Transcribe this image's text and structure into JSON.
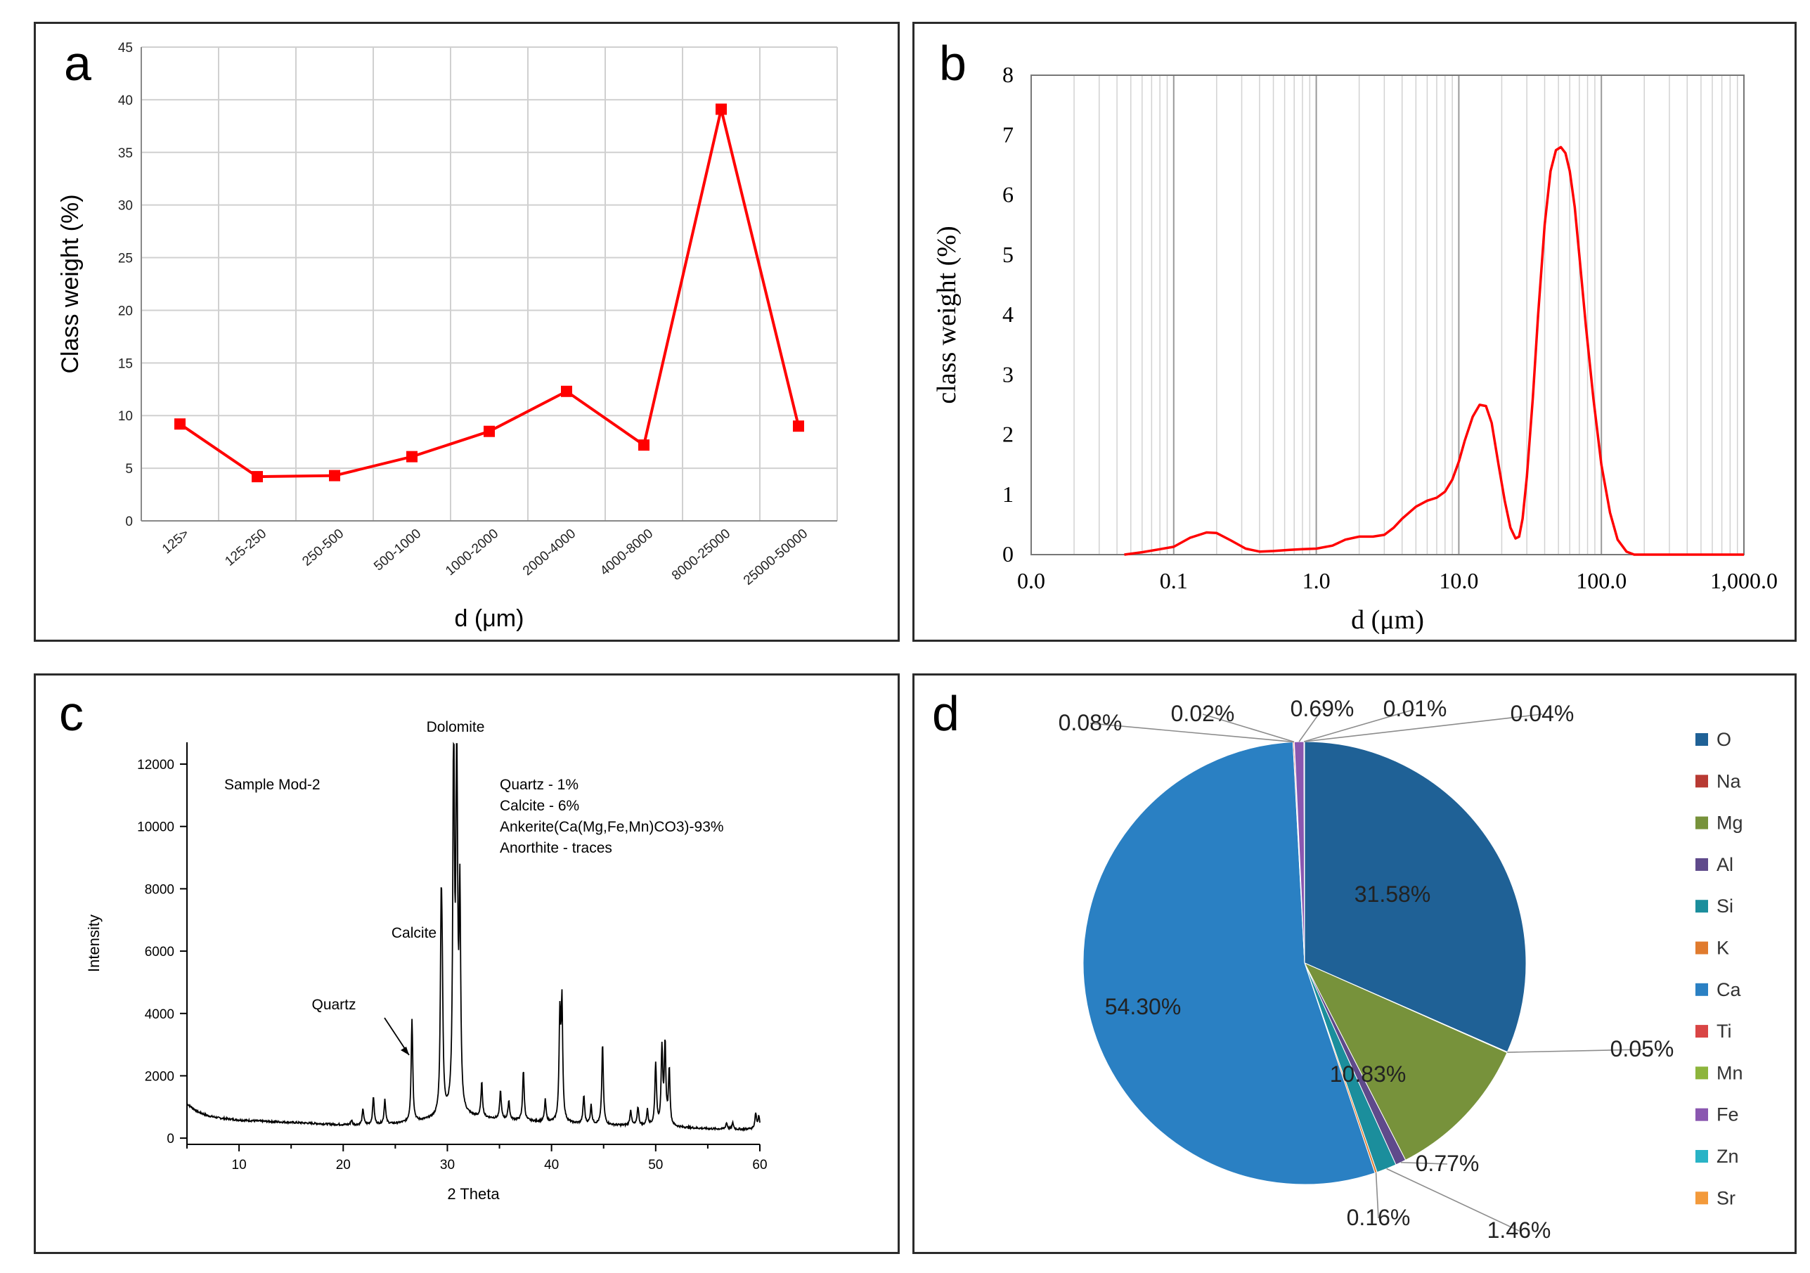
{
  "chart_data": [
    {
      "panel": "a",
      "type": "line",
      "panel_label": "a",
      "xlabel": "d (μm)",
      "ylabel": "Class weight (%)",
      "categories": [
        "125>",
        "125-250",
        "250-500",
        "500-1000",
        "1000-2000",
        "2000-4000",
        "4000-8000",
        "8000-25000",
        "25000-50000"
      ],
      "values": [
        9.2,
        4.2,
        4.3,
        6.1,
        8.5,
        12.3,
        7.2,
        39.1,
        9.0
      ],
      "ylim": [
        0,
        45
      ],
      "yticks": [
        0,
        5,
        10,
        15,
        20,
        25,
        30,
        35,
        40,
        45
      ],
      "grid": true,
      "color": "#ff0000"
    },
    {
      "panel": "b",
      "type": "line",
      "panel_label": "b",
      "xlabel": "d (μm)",
      "ylabel": "class weight (%)",
      "xscale": "log",
      "xlim": [
        0.01,
        1000
      ],
      "ylim": [
        0,
        8
      ],
      "xticks": [
        0.01,
        0.1,
        1,
        10,
        100,
        1000
      ],
      "xticklabels": [
        "0.0",
        "0.1",
        "1.0",
        "10.0",
        "100.0",
        "1,000.0"
      ],
      "yticks": [
        0,
        1,
        2,
        3,
        4,
        5,
        6,
        7,
        8
      ],
      "grid": true,
      "color": "#ff0000",
      "x": [
        0.045,
        0.06,
        0.08,
        0.1,
        0.13,
        0.17,
        0.2,
        0.25,
        0.32,
        0.4,
        0.5,
        0.65,
        0.8,
        1.0,
        1.3,
        1.6,
        2.0,
        2.5,
        3.0,
        3.5,
        4.0,
        5.0,
        6.0,
        7.0,
        8.0,
        9.0,
        10.0,
        11.0,
        12.5,
        14.0,
        15.5,
        17.0,
        19.0,
        21.0,
        23.0,
        25.0,
        26.5,
        28.0,
        30.0,
        33.0,
        36.0,
        40.0,
        44.0,
        48.0,
        52.0,
        56.0,
        60.0,
        65.0,
        70.0,
        78.0,
        88.0,
        100.0,
        115.0,
        130.0,
        150.0,
        170.0,
        200.0,
        300.0,
        500.0,
        1000.0
      ],
      "y": [
        0.0,
        0.04,
        0.09,
        0.13,
        0.28,
        0.37,
        0.36,
        0.24,
        0.1,
        0.05,
        0.06,
        0.08,
        0.09,
        0.1,
        0.15,
        0.25,
        0.3,
        0.3,
        0.33,
        0.45,
        0.6,
        0.8,
        0.9,
        0.95,
        1.05,
        1.25,
        1.55,
        1.9,
        2.3,
        2.5,
        2.48,
        2.2,
        1.5,
        0.9,
        0.45,
        0.27,
        0.3,
        0.6,
        1.3,
        2.6,
        4.0,
        5.5,
        6.4,
        6.75,
        6.8,
        6.7,
        6.4,
        5.8,
        5.0,
        3.8,
        2.6,
        1.5,
        0.7,
        0.25,
        0.05,
        0.0,
        0.0,
        0.0,
        0.0,
        0.0
      ]
    },
    {
      "panel": "c",
      "type": "line",
      "panel_label": "c",
      "xlabel": "2 Theta",
      "ylabel": "Intensity",
      "xlim": [
        5,
        60
      ],
      "ylim": [
        -200,
        12700
      ],
      "xticks": [
        10,
        20,
        30,
        40,
        50,
        60
      ],
      "yticks": [
        0,
        2000,
        4000,
        6000,
        8000,
        10000,
        12000
      ],
      "color": "#000000",
      "baseline": [
        [
          5,
          1100
        ],
        [
          6,
          850
        ],
        [
          7,
          720
        ],
        [
          8,
          650
        ],
        [
          10,
          580
        ],
        [
          13,
          530
        ],
        [
          16,
          490
        ],
        [
          19,
          440
        ],
        [
          21,
          420
        ],
        [
          23,
          430
        ],
        [
          25,
          460
        ],
        [
          27,
          520
        ],
        [
          28.5,
          600
        ],
        [
          30,
          700
        ],
        [
          32,
          680
        ],
        [
          35,
          600
        ],
        [
          40,
          500
        ],
        [
          45,
          420
        ],
        [
          50,
          380
        ],
        [
          55,
          300
        ],
        [
          58,
          280
        ],
        [
          60,
          300
        ]
      ],
      "peaks": [
        [
          20.8,
          150
        ],
        [
          21.9,
          500
        ],
        [
          22.9,
          900
        ],
        [
          24.0,
          800
        ],
        [
          26.6,
          3300
        ],
        [
          29.4,
          5700
        ],
        [
          29.5,
          3500
        ],
        [
          30.6,
          12500
        ],
        [
          30.9,
          12100
        ],
        [
          31.2,
          6800
        ],
        [
          33.3,
          1100
        ],
        [
          35.1,
          900
        ],
        [
          35.9,
          600
        ],
        [
          37.3,
          1600
        ],
        [
          39.4,
          700
        ],
        [
          40.8,
          3300
        ],
        [
          41.0,
          3700
        ],
        [
          43.1,
          900
        ],
        [
          43.8,
          600
        ],
        [
          44.9,
          2600
        ],
        [
          47.6,
          500
        ],
        [
          48.3,
          600
        ],
        [
          49.2,
          500
        ],
        [
          50.0,
          2000
        ],
        [
          50.6,
          2400
        ],
        [
          50.9,
          2600
        ],
        [
          51.3,
          1800
        ],
        [
          56.8,
          200
        ],
        [
          57.4,
          200
        ],
        [
          59.6,
          500
        ],
        [
          59.9,
          400
        ]
      ],
      "texts": {
        "sample": "Sample Mod-2",
        "composition": [
          "Quartz - 1%",
          "Calcite - 6%",
          "Ankerite(Ca(Mg,Fe,Mn)CO3)-93%",
          "Anorthite - traces"
        ],
        "peak_labels": [
          "Dolomite",
          "Calcite",
          "Quartz"
        ]
      }
    },
    {
      "panel": "d",
      "type": "pie",
      "panel_label": "d",
      "legend_position": "right",
      "slices": [
        {
          "label": "O",
          "value": 31.58,
          "display": "31.58%",
          "color": "#1f6196"
        },
        {
          "label": "Na",
          "value": 0.05,
          "display": "0.05%",
          "color": "#b83a33"
        },
        {
          "label": "Mg",
          "value": 10.83,
          "display": "10.83%",
          "color": "#77923b"
        },
        {
          "label": "Al",
          "value": 0.77,
          "display": "0.77%",
          "color": "#5f4a8b"
        },
        {
          "label": "Si",
          "value": 1.46,
          "display": "1.46%",
          "color": "#1b8e9c"
        },
        {
          "label": "K",
          "value": 0.16,
          "display": "0.16%",
          "color": "#e07b2e"
        },
        {
          "label": "Ca",
          "value": 54.3,
          "display": "54.30%",
          "color": "#2a80c3"
        },
        {
          "label": "Ti",
          "value": 0.08,
          "display": "0.08%",
          "color": "#d94545"
        },
        {
          "label": "Mn",
          "value": 0.02,
          "display": "0.02%",
          "color": "#8db53c"
        },
        {
          "label": "Fe",
          "value": 0.69,
          "display": "0.69%",
          "color": "#8a57b0"
        },
        {
          "label": "Zn",
          "value": 0.01,
          "display": "0.01%",
          "color": "#29b3c6"
        },
        {
          "label": "Sr",
          "value": 0.04,
          "display": "0.04%",
          "color": "#f39a3b"
        }
      ]
    }
  ]
}
